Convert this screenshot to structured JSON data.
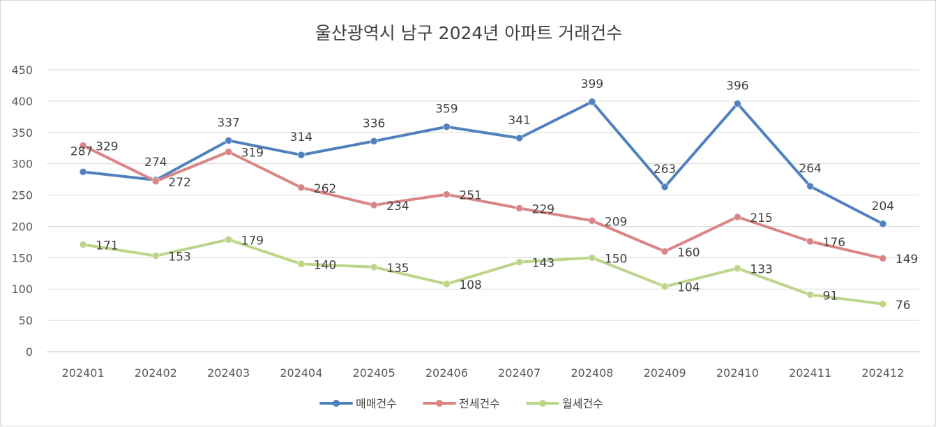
{
  "chart_data": {
    "type": "line",
    "title": "울산광역시 남구 2024년 아파트 거래건수",
    "categories": [
      "202401",
      "202402",
      "202403",
      "202404",
      "202405",
      "202406",
      "202407",
      "202408",
      "202409",
      "202410",
      "202411",
      "202412"
    ],
    "ylim": [
      0,
      450
    ],
    "yticks": [
      0,
      50,
      100,
      150,
      200,
      250,
      300,
      350,
      400,
      450
    ],
    "grid": true,
    "legend_position": "bottom",
    "series": [
      {
        "name": "매매건수",
        "color": "#4f81bd",
        "values": [
          287,
          274,
          337,
          314,
          336,
          359,
          341,
          399,
          263,
          396,
          264,
          204
        ]
      },
      {
        "name": "전세건수",
        "color": "#d98585",
        "values": [
          329,
          272,
          319,
          262,
          234,
          251,
          229,
          209,
          160,
          215,
          176,
          149
        ]
      },
      {
        "name": "월세건수",
        "color": "#bdd58a",
        "values": [
          171,
          153,
          179,
          140,
          135,
          108,
          143,
          150,
          104,
          133,
          91,
          76
        ]
      }
    ]
  }
}
